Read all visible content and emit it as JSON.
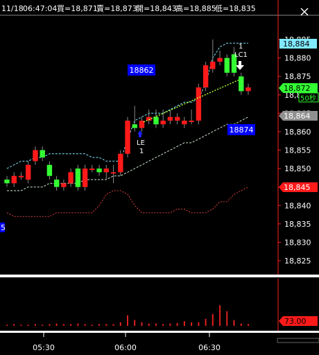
{
  "header": {
    "date": "11/18",
    "time": "06:47:04",
    "bid": "買=18,871",
    "ask": "賣=18,873",
    "open": "開=18,843",
    "high": "高=18,885",
    "low": "低=18,835",
    "close_icon": "close-icon"
  },
  "labels": {
    "box_18862": "18862",
    "box_18874": "18874",
    "box_left": "5",
    "entry": "LE",
    "entry_qty": "1",
    "exit": "LC1",
    "exit_qty": "1",
    "timer": "50秒"
  },
  "price_tags": {
    "upper_band": "18,884",
    "last": "18,872",
    "mid_band": "18,864",
    "lower_band": "18,845",
    "volume_avg": "73.00"
  },
  "colors": {
    "up": "#ff1a1a",
    "down": "#33ff33",
    "blue_box": "#0000ff",
    "cyan_band": "#80e8ff",
    "lower_band": "#e04040",
    "volume": "#e02020"
  },
  "chart_data": {
    "type": "candlestick",
    "x_ticks": [
      "05:30",
      "06:00",
      "06:30"
    ],
    "y_ticks": [
      "18,885",
      "18,880",
      "18,875",
      "18,870",
      "18,865",
      "18,860",
      "18,855",
      "18,850",
      "18,845",
      "18,840",
      "18,835",
      "18,830",
      "18,825"
    ],
    "ylim": [
      18822,
      18888
    ],
    "candles": [
      {
        "o": 18847,
        "c": 18846,
        "h": 18848,
        "l": 18845
      },
      {
        "o": 18846,
        "c": 18848,
        "h": 18849,
        "l": 18845
      },
      {
        "o": 18848,
        "c": 18848,
        "h": 18849,
        "l": 18847
      },
      {
        "o": 18847,
        "c": 18851,
        "h": 18852,
        "l": 18846
      },
      {
        "o": 18852,
        "c": 18855,
        "h": 18856,
        "l": 18851
      },
      {
        "o": 18855,
        "c": 18853,
        "h": 18856,
        "l": 18852
      },
      {
        "o": 18851,
        "c": 18848,
        "h": 18852,
        "l": 18847
      },
      {
        "o": 18847,
        "c": 18845,
        "h": 18848,
        "l": 18844
      },
      {
        "o": 18845,
        "c": 18846,
        "h": 18847,
        "l": 18844
      },
      {
        "o": 18846,
        "c": 18849,
        "h": 18850,
        "l": 18845
      },
      {
        "o": 18850,
        "c": 18845,
        "h": 18851,
        "l": 18844
      },
      {
        "o": 18845,
        "c": 18850,
        "h": 18851,
        "l": 18844
      },
      {
        "o": 18850,
        "c": 18850,
        "h": 18851,
        "l": 18849
      },
      {
        "o": 18850,
        "c": 18849,
        "h": 18851,
        "l": 18848
      },
      {
        "o": 18849,
        "c": 18850,
        "h": 18851,
        "l": 18847
      },
      {
        "o": 18849,
        "c": 18849,
        "h": 18851,
        "l": 18846
      },
      {
        "o": 18849,
        "c": 18854,
        "h": 18855,
        "l": 18848
      },
      {
        "o": 18854,
        "c": 18863,
        "h": 18864,
        "l": 18853
      },
      {
        "o": 18862,
        "c": 18861,
        "h": 18867,
        "l": 18860
      },
      {
        "o": 18861,
        "c": 18863,
        "h": 18864,
        "l": 18860
      },
      {
        "o": 18863,
        "c": 18864,
        "h": 18866,
        "l": 18862
      },
      {
        "o": 18864,
        "c": 18862,
        "h": 18866,
        "l": 18861
      },
      {
        "o": 18862,
        "c": 18863,
        "h": 18866,
        "l": 18861
      },
      {
        "o": 18863,
        "c": 18864,
        "h": 18866,
        "l": 18862
      },
      {
        "o": 18863,
        "c": 18864,
        "h": 18865,
        "l": 18862
      },
      {
        "o": 18862,
        "c": 18863,
        "h": 18864,
        "l": 18861
      },
      {
        "o": 18863,
        "c": 18863,
        "h": 18866,
        "l": 18862
      },
      {
        "o": 18863,
        "c": 18872,
        "h": 18873,
        "l": 18862
      },
      {
        "o": 18872,
        "c": 18878,
        "h": 18879,
        "l": 18871
      },
      {
        "o": 18877,
        "c": 18879,
        "h": 18885,
        "l": 18876
      },
      {
        "o": 18879,
        "c": 18880,
        "h": 18882,
        "l": 18878
      },
      {
        "o": 18880,
        "c": 18876,
        "h": 18881,
        "l": 18875
      },
      {
        "o": 18881,
        "c": 18876,
        "h": 18883,
        "l": 18875
      },
      {
        "o": 18875,
        "c": 18871,
        "h": 18876,
        "l": 18870
      },
      {
        "o": 18871,
        "c": 18872,
        "h": 18873,
        "l": 18870
      }
    ],
    "upper_band": [
      18850,
      18851,
      18852,
      18852,
      18853,
      18853,
      18854,
      18854,
      18854,
      18854,
      18854,
      18854,
      18853,
      18853,
      18852,
      18852,
      18852,
      18858,
      18863,
      18864,
      18865,
      18865,
      18865,
      18866,
      18867,
      18868,
      18868,
      18869,
      18873,
      18880,
      18883,
      18884,
      18884,
      18884,
      18884
    ],
    "middle_band": [
      18844,
      18844,
      18844,
      18845,
      18845,
      18845,
      18846,
      18846,
      18846,
      18846,
      18846,
      18847,
      18847,
      18847,
      18847,
      18848,
      18848,
      18849,
      18850,
      18851,
      18852,
      18853,
      18854,
      18855,
      18856,
      18857,
      18857,
      18858,
      18859,
      18860,
      18861,
      18862,
      18862,
      18863,
      18864
    ],
    "lower_band": [
      18838,
      18837,
      18837,
      18837,
      18837,
      18837,
      18837,
      18838,
      18838,
      18838,
      18838,
      18838,
      18838,
      18840,
      18843,
      18844,
      18844,
      18843,
      18840,
      18838,
      18838,
      18838,
      18838,
      18838,
      18839,
      18839,
      18838,
      18838,
      18838,
      18839,
      18841,
      18841,
      18843,
      18844,
      18845
    ],
    "volume": [
      2,
      3,
      2,
      2,
      3,
      2,
      3,
      4,
      3,
      3,
      4,
      3,
      2,
      3,
      3,
      3,
      6,
      18,
      10,
      6,
      4,
      4,
      3,
      4,
      5,
      8,
      6,
      6,
      12,
      20,
      35,
      25,
      10,
      4,
      3
    ],
    "volume_scale_max": 80
  }
}
